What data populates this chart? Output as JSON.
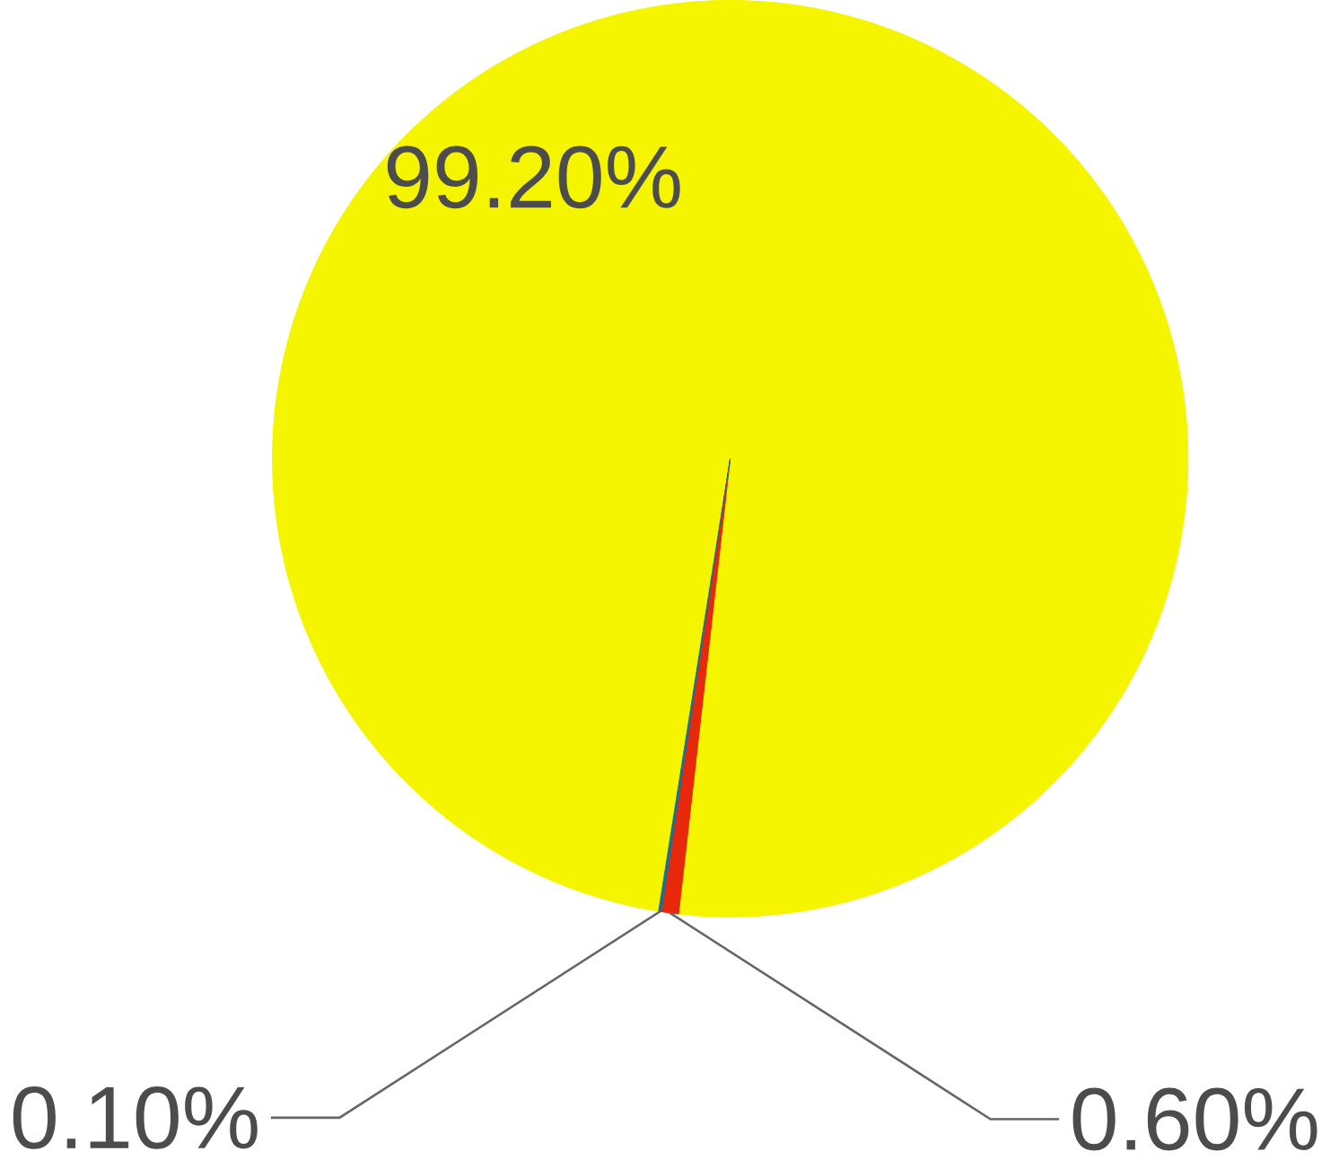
{
  "chart_data": {
    "type": "pie",
    "categories": [
      null,
      null,
      null
    ],
    "values": [
      99.2,
      0.6,
      0.1
    ],
    "colors": [
      "#f5f500",
      "#e8280a",
      "#1f6e8c"
    ],
    "value_labels": [
      "99.20%",
      "0.60%",
      "0.10%"
    ]
  }
}
